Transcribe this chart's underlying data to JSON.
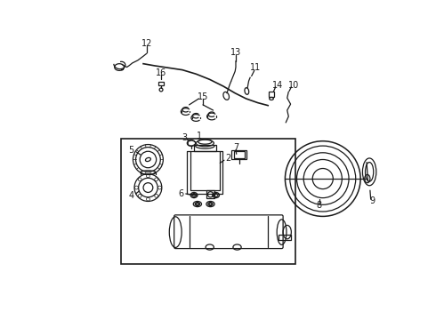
{
  "bg_color": "#ffffff",
  "line_color": "#1a1a1a",
  "fig_width": 4.9,
  "fig_height": 3.6,
  "dpi": 100,
  "lw": 0.9
}
